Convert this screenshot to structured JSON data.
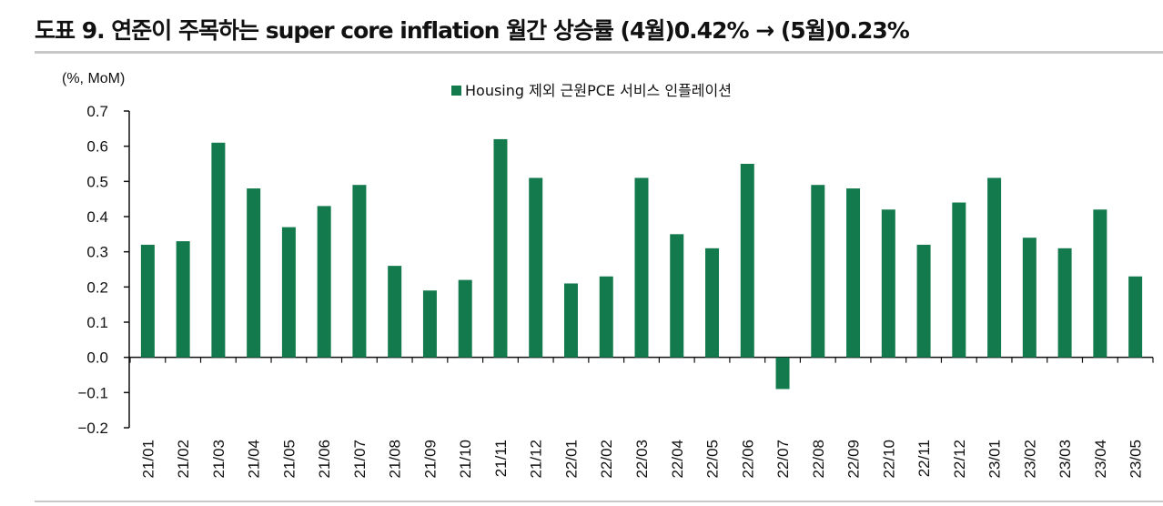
{
  "title": "도표 9. 연준이 주목하는 super core inflation 월간 상승률 (4월)0.42% → (5월)0.23%",
  "chart_data": {
    "type": "bar",
    "title": "도표 9. 연준이 주목하는 super core inflation 월간 상승률 (4월)0.42% → (5월)0.23%",
    "unit_label": "(%, MoM)",
    "xlabel": "",
    "ylabel": "(%, MoM)",
    "ylim": [
      -0.2,
      0.7
    ],
    "yticks": [
      0.7,
      0.6,
      0.5,
      0.4,
      0.3,
      0.2,
      0.1,
      0.0,
      -0.1,
      -0.2
    ],
    "ytick_labels": [
      "0.7",
      "0.6",
      "0.5",
      "0.4",
      "0.3",
      "0.2",
      "0.1",
      "0.0",
      "−0.1",
      "−0.2"
    ],
    "legend_position": "top-center",
    "categories": [
      "21/01",
      "21/02",
      "21/03",
      "21/04",
      "21/05",
      "21/06",
      "21/07",
      "21/08",
      "21/09",
      "21/10",
      "21/11",
      "21/12",
      "22/01",
      "22/02",
      "22/03",
      "22/04",
      "22/05",
      "22/06",
      "22/07",
      "22/08",
      "22/09",
      "22/10",
      "22/11",
      "22/12",
      "23/01",
      "23/02",
      "23/03",
      "23/04",
      "23/05"
    ],
    "series": [
      {
        "name": "Housing 제외 근원PCE 서비스 인플레이션",
        "color": "#127a4c",
        "values": [
          0.32,
          0.33,
          0.61,
          0.48,
          0.37,
          0.43,
          0.49,
          0.26,
          0.19,
          0.22,
          0.62,
          0.51,
          0.21,
          0.23,
          0.51,
          0.35,
          0.31,
          0.55,
          -0.09,
          0.49,
          0.48,
          0.42,
          0.32,
          0.44,
          0.51,
          0.34,
          0.31,
          0.42,
          0.23
        ]
      }
    ]
  }
}
